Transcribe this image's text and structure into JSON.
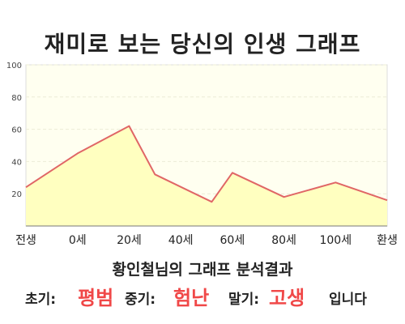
{
  "header": {
    "title": "재미로 보는 당신의 인생 그래프"
  },
  "chart_data": {
    "type": "area",
    "categories": [
      "전생",
      "0세",
      "20세",
      "40세",
      "60세",
      "80세",
      "100세",
      "환생"
    ],
    "x": [
      -20,
      0,
      20,
      40,
      60,
      80,
      100,
      120
    ],
    "points": [
      {
        "x": -20,
        "y": 24
      },
      {
        "x": 0,
        "y": 45
      },
      {
        "x": 20,
        "y": 62
      },
      {
        "x": 30,
        "y": 32
      },
      {
        "x": 52,
        "y": 15
      },
      {
        "x": 60,
        "y": 33
      },
      {
        "x": 80,
        "y": 18
      },
      {
        "x": 100,
        "y": 27
      },
      {
        "x": 120,
        "y": 16
      }
    ],
    "ylim": [
      0,
      100
    ],
    "yticks": [
      20,
      40,
      60,
      80,
      100
    ],
    "xlim": [
      -20,
      120
    ],
    "grid": true,
    "colors": {
      "line": "#e06666",
      "fill": "#ffffc0",
      "plot_background": "#fffff0",
      "grid": "#ececd6"
    }
  },
  "summary": {
    "heading": "황인철님의 그래프 분석결과",
    "early_label": "초기:",
    "early_value": "평범",
    "middle_label": "중기:",
    "middle_value": "험난",
    "late_label": "말기:",
    "late_value": "고생",
    "suffix": "입니다",
    "highlight_color": "#f04848"
  }
}
